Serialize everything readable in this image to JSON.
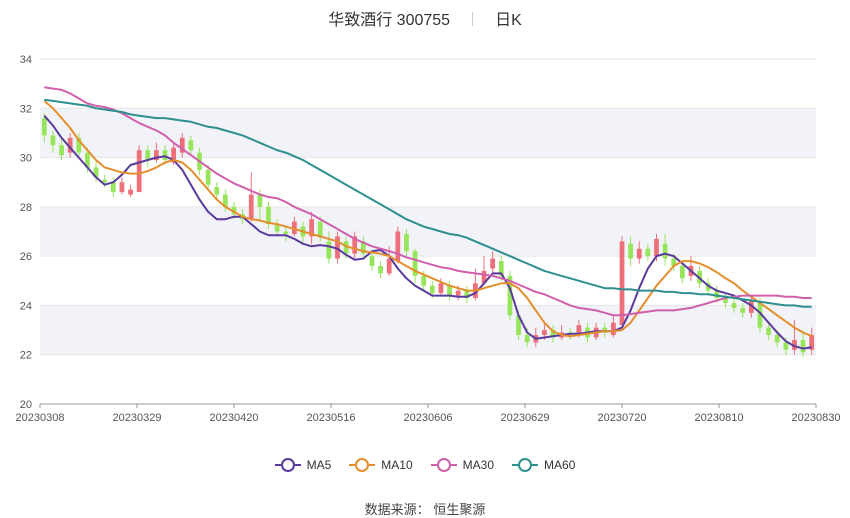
{
  "chart_data": {
    "type": "candlestick-line",
    "title": "华致酒行 300755",
    "period_label": "日K",
    "ylim": [
      20,
      34
    ],
    "yticks": [
      20,
      22,
      24,
      26,
      28,
      30,
      32,
      34
    ],
    "x_tick_labels": [
      "20230308",
      "20230329",
      "20230420",
      "20230516",
      "20230606",
      "20230629",
      "20230720",
      "20230810",
      "20230830"
    ],
    "colors": {
      "up": "#ec6f7a",
      "down": "#97e55b",
      "band": "#f2f3f8",
      "grid": "#e6e6e6"
    },
    "series": [
      {
        "name": "MA5",
        "color": "#5b3a9e",
        "values": [
          31.7,
          31.3,
          30.8,
          30.4,
          30.0,
          29.6,
          29.2,
          28.9,
          29.0,
          29.3,
          29.7,
          29.8,
          29.9,
          30.0,
          30.05,
          29.9,
          29.5,
          28.9,
          28.3,
          27.8,
          27.5,
          27.5,
          27.6,
          27.6,
          27.3,
          27.0,
          26.85,
          26.85,
          26.85,
          26.7,
          26.5,
          26.4,
          26.45,
          26.4,
          26.3,
          26.05,
          25.85,
          25.9,
          26.2,
          26.25,
          26.0,
          25.5,
          25.1,
          24.8,
          24.6,
          24.4,
          24.4,
          24.4,
          24.35,
          24.35,
          24.5,
          24.9,
          25.3,
          25.3,
          24.7,
          23.6,
          22.9,
          22.65,
          22.7,
          22.75,
          22.8,
          22.85,
          22.85,
          22.9,
          22.95,
          22.95,
          22.95,
          23.1,
          23.8,
          24.7,
          25.5,
          26.0,
          26.1,
          26.0,
          25.7,
          25.4,
          25.1,
          24.8,
          24.6,
          24.5,
          24.4,
          24.2,
          24.0,
          23.7,
          23.3,
          22.9,
          22.55,
          22.35,
          22.25,
          22.3
        ]
      },
      {
        "name": "MA10",
        "color": "#e48e2e",
        "values": [
          32.3,
          32.0,
          31.6,
          31.2,
          30.7,
          30.3,
          29.9,
          29.6,
          29.5,
          29.4,
          29.35,
          29.35,
          29.45,
          29.6,
          29.8,
          29.9,
          29.8,
          29.5,
          29.1,
          28.7,
          28.3,
          28.0,
          27.8,
          27.6,
          27.5,
          27.45,
          27.35,
          27.3,
          27.2,
          27.1,
          27.0,
          26.9,
          26.8,
          26.7,
          26.6,
          26.4,
          26.3,
          26.2,
          26.15,
          26.1,
          26.0,
          25.8,
          25.6,
          25.4,
          25.25,
          25.1,
          24.95,
          24.8,
          24.7,
          24.6,
          24.6,
          24.7,
          24.8,
          24.9,
          24.9,
          24.7,
          24.3,
          23.8,
          23.3,
          22.95,
          22.8,
          22.75,
          22.8,
          22.85,
          22.9,
          22.95,
          22.95,
          23.0,
          23.3,
          23.8,
          24.3,
          24.8,
          25.2,
          25.6,
          25.8,
          25.8,
          25.7,
          25.55,
          25.35,
          25.1,
          24.9,
          24.6,
          24.35,
          24.1,
          23.85,
          23.6,
          23.35,
          23.1,
          22.9,
          22.75
        ]
      },
      {
        "name": "MA30",
        "color": "#d060ae",
        "values": [
          32.85,
          32.8,
          32.75,
          32.6,
          32.4,
          32.2,
          32.1,
          32.05,
          31.95,
          31.8,
          31.6,
          31.4,
          31.25,
          31.1,
          30.9,
          30.6,
          30.35,
          30.1,
          29.85,
          29.6,
          29.35,
          29.15,
          28.95,
          28.8,
          28.65,
          28.5,
          28.4,
          28.35,
          28.2,
          28.0,
          27.85,
          27.7,
          27.5,
          27.3,
          27.1,
          26.9,
          26.7,
          26.55,
          26.4,
          26.3,
          26.2,
          26.1,
          25.95,
          25.85,
          25.75,
          25.65,
          25.55,
          25.5,
          25.4,
          25.35,
          25.3,
          25.25,
          25.2,
          25.1,
          25.0,
          24.85,
          24.7,
          24.55,
          24.45,
          24.3,
          24.15,
          24.0,
          23.9,
          23.85,
          23.8,
          23.7,
          23.6,
          23.6,
          23.65,
          23.7,
          23.75,
          23.8,
          23.8,
          23.8,
          23.85,
          23.9,
          24.0,
          24.1,
          24.2,
          24.3,
          24.35,
          24.4,
          24.4,
          24.4,
          24.4,
          24.4,
          24.35,
          24.35,
          24.3,
          24.3
        ]
      },
      {
        "name": "MA60",
        "color": "#2f8f8f",
        "values": [
          32.35,
          32.3,
          32.25,
          32.2,
          32.15,
          32.1,
          32.0,
          31.95,
          31.9,
          31.85,
          31.75,
          31.7,
          31.65,
          31.6,
          31.6,
          31.55,
          31.5,
          31.45,
          31.35,
          31.25,
          31.2,
          31.1,
          31.0,
          30.9,
          30.75,
          30.6,
          30.45,
          30.3,
          30.2,
          30.05,
          29.9,
          29.7,
          29.5,
          29.3,
          29.1,
          28.9,
          28.7,
          28.5,
          28.3,
          28.1,
          27.9,
          27.7,
          27.5,
          27.35,
          27.2,
          27.1,
          27.0,
          26.9,
          26.85,
          26.75,
          26.6,
          26.45,
          26.3,
          26.15,
          26.0,
          25.85,
          25.7,
          25.55,
          25.4,
          25.3,
          25.2,
          25.1,
          25.0,
          24.9,
          24.8,
          24.7,
          24.7,
          24.65,
          24.65,
          24.6,
          24.6,
          24.6,
          24.55,
          24.55,
          24.5,
          24.5,
          24.45,
          24.45,
          24.4,
          24.35,
          24.3,
          24.25,
          24.2,
          24.15,
          24.1,
          24.05,
          24.0,
          24.0,
          23.95,
          23.95
        ]
      }
    ],
    "candles": [
      [
        31.6,
        30.9,
        31.8,
        30.6
      ],
      [
        30.9,
        30.5,
        31.1,
        30.2
      ],
      [
        30.5,
        30.1,
        30.8,
        29.9
      ],
      [
        30.2,
        30.8,
        31.0,
        30.0
      ],
      [
        30.8,
        30.2,
        31.0,
        30.0
      ],
      [
        30.2,
        29.6,
        30.4,
        29.4
      ],
      [
        29.6,
        29.2,
        29.9,
        29.0
      ],
      [
        29.1,
        29.0,
        29.3,
        28.8
      ],
      [
        29.0,
        28.6,
        29.2,
        28.4
      ],
      [
        28.6,
        29.0,
        29.2,
        28.5
      ],
      [
        28.5,
        28.7,
        28.9,
        28.4
      ],
      [
        28.6,
        30.3,
        30.5,
        28.6
      ],
      [
        30.3,
        29.9,
        30.5,
        29.6
      ],
      [
        29.9,
        30.3,
        30.6,
        29.8
      ],
      [
        30.3,
        29.9,
        30.5,
        29.7
      ],
      [
        29.8,
        30.4,
        30.6,
        29.7
      ],
      [
        30.2,
        30.8,
        31.0,
        30.0
      ],
      [
        30.7,
        30.3,
        30.9,
        30.1
      ],
      [
        30.2,
        29.5,
        30.4,
        29.3
      ],
      [
        29.5,
        28.9,
        29.7,
        28.7
      ],
      [
        28.8,
        28.5,
        29.0,
        28.3
      ],
      [
        28.5,
        28.0,
        28.7,
        27.8
      ],
      [
        28.0,
        27.7,
        28.2,
        27.5
      ],
      [
        27.7,
        27.5,
        27.9,
        27.3
      ],
      [
        27.5,
        28.5,
        29.4,
        27.4
      ],
      [
        28.5,
        28.0,
        28.7,
        27.4
      ],
      [
        28.0,
        27.3,
        28.2,
        27.1
      ],
      [
        27.3,
        27.0,
        27.5,
        26.8
      ],
      [
        27.0,
        26.9,
        27.2,
        26.6
      ],
      [
        26.9,
        27.4,
        27.6,
        26.8
      ],
      [
        27.2,
        26.8,
        27.4,
        26.5
      ],
      [
        26.8,
        27.5,
        27.8,
        26.5
      ],
      [
        27.4,
        26.8,
        27.6,
        26.6
      ],
      [
        26.6,
        25.9,
        27.0,
        25.7
      ],
      [
        25.9,
        26.8,
        27.0,
        25.7
      ],
      [
        26.6,
        26.1,
        26.8,
        25.9
      ],
      [
        26.1,
        26.8,
        27.0,
        25.9
      ],
      [
        26.6,
        26.1,
        26.8,
        25.9
      ],
      [
        26.0,
        25.6,
        26.2,
        25.4
      ],
      [
        25.6,
        25.3,
        25.8,
        25.1
      ],
      [
        25.3,
        25.9,
        26.4,
        25.2
      ],
      [
        25.8,
        27.0,
        27.2,
        25.7
      ],
      [
        26.9,
        26.2,
        27.1,
        26.0
      ],
      [
        26.2,
        25.2,
        26.3,
        24.9
      ],
      [
        25.2,
        24.8,
        25.4,
        24.6
      ],
      [
        24.8,
        24.5,
        25.0,
        24.3
      ],
      [
        24.5,
        24.9,
        25.1,
        24.4
      ],
      [
        24.8,
        24.4,
        25.0,
        24.2
      ],
      [
        24.4,
        24.6,
        24.8,
        24.2
      ],
      [
        24.6,
        24.3,
        24.8,
        24.1
      ],
      [
        24.3,
        24.9,
        25.5,
        24.2
      ],
      [
        24.9,
        25.4,
        26.0,
        24.8
      ],
      [
        25.5,
        25.9,
        26.2,
        25.3
      ],
      [
        25.8,
        25.2,
        26.0,
        25.0
      ],
      [
        25.2,
        23.6,
        25.4,
        23.4
      ],
      [
        23.6,
        22.8,
        23.8,
        22.6
      ],
      [
        22.8,
        22.5,
        23.1,
        22.3
      ],
      [
        22.5,
        22.8,
        23.1,
        22.3
      ],
      [
        22.8,
        23.0,
        23.3,
        22.6
      ],
      [
        23.0,
        22.7,
        23.2,
        22.5
      ],
      [
        22.7,
        22.9,
        23.2,
        22.6
      ],
      [
        22.9,
        22.8,
        23.1,
        22.6
      ],
      [
        22.8,
        23.2,
        23.4,
        22.7
      ],
      [
        23.1,
        22.7,
        23.3,
        22.5
      ],
      [
        22.7,
        23.1,
        23.3,
        22.6
      ],
      [
        23.1,
        22.9,
        23.3,
        22.7
      ],
      [
        22.8,
        23.3,
        23.6,
        22.7
      ],
      [
        23.2,
        26.6,
        26.8,
        23.2
      ],
      [
        26.5,
        25.9,
        26.8,
        25.6
      ],
      [
        25.9,
        26.3,
        26.6,
        25.7
      ],
      [
        26.3,
        26.0,
        26.5,
        25.8
      ],
      [
        26.0,
        26.7,
        26.9,
        25.8
      ],
      [
        26.5,
        25.9,
        26.9,
        25.6
      ],
      [
        25.9,
        25.6,
        26.1,
        25.4
      ],
      [
        25.6,
        25.1,
        25.8,
        24.9
      ],
      [
        25.2,
        25.6,
        26.0,
        25.0
      ],
      [
        25.4,
        24.9,
        25.6,
        24.7
      ],
      [
        24.9,
        24.6,
        25.1,
        24.4
      ],
      [
        24.6,
        24.3,
        24.8,
        24.1
      ],
      [
        24.3,
        24.1,
        24.5,
        23.9
      ],
      [
        24.1,
        23.9,
        24.3,
        23.7
      ],
      [
        23.9,
        23.7,
        24.1,
        23.5
      ],
      [
        23.7,
        24.2,
        24.4,
        23.5
      ],
      [
        24.1,
        23.1,
        24.3,
        22.9
      ],
      [
        23.1,
        22.8,
        23.3,
        22.6
      ],
      [
        22.8,
        22.5,
        23.0,
        22.3
      ],
      [
        22.5,
        22.2,
        22.7,
        22.0
      ],
      [
        22.2,
        22.6,
        23.4,
        22.0
      ],
      [
        22.6,
        22.1,
        23.0,
        21.9
      ],
      [
        22.2,
        22.8,
        23.1,
        22.0
      ]
    ]
  },
  "legend": {
    "items": [
      {
        "label": "MA5",
        "color": "#5b3a9e"
      },
      {
        "label": "MA10",
        "color": "#e48e2e"
      },
      {
        "label": "MA30",
        "color": "#d060ae"
      },
      {
        "label": "MA60",
        "color": "#2f8f8f"
      }
    ]
  },
  "footer": {
    "source_label": "数据来源：",
    "source_name": "恒生聚源"
  }
}
